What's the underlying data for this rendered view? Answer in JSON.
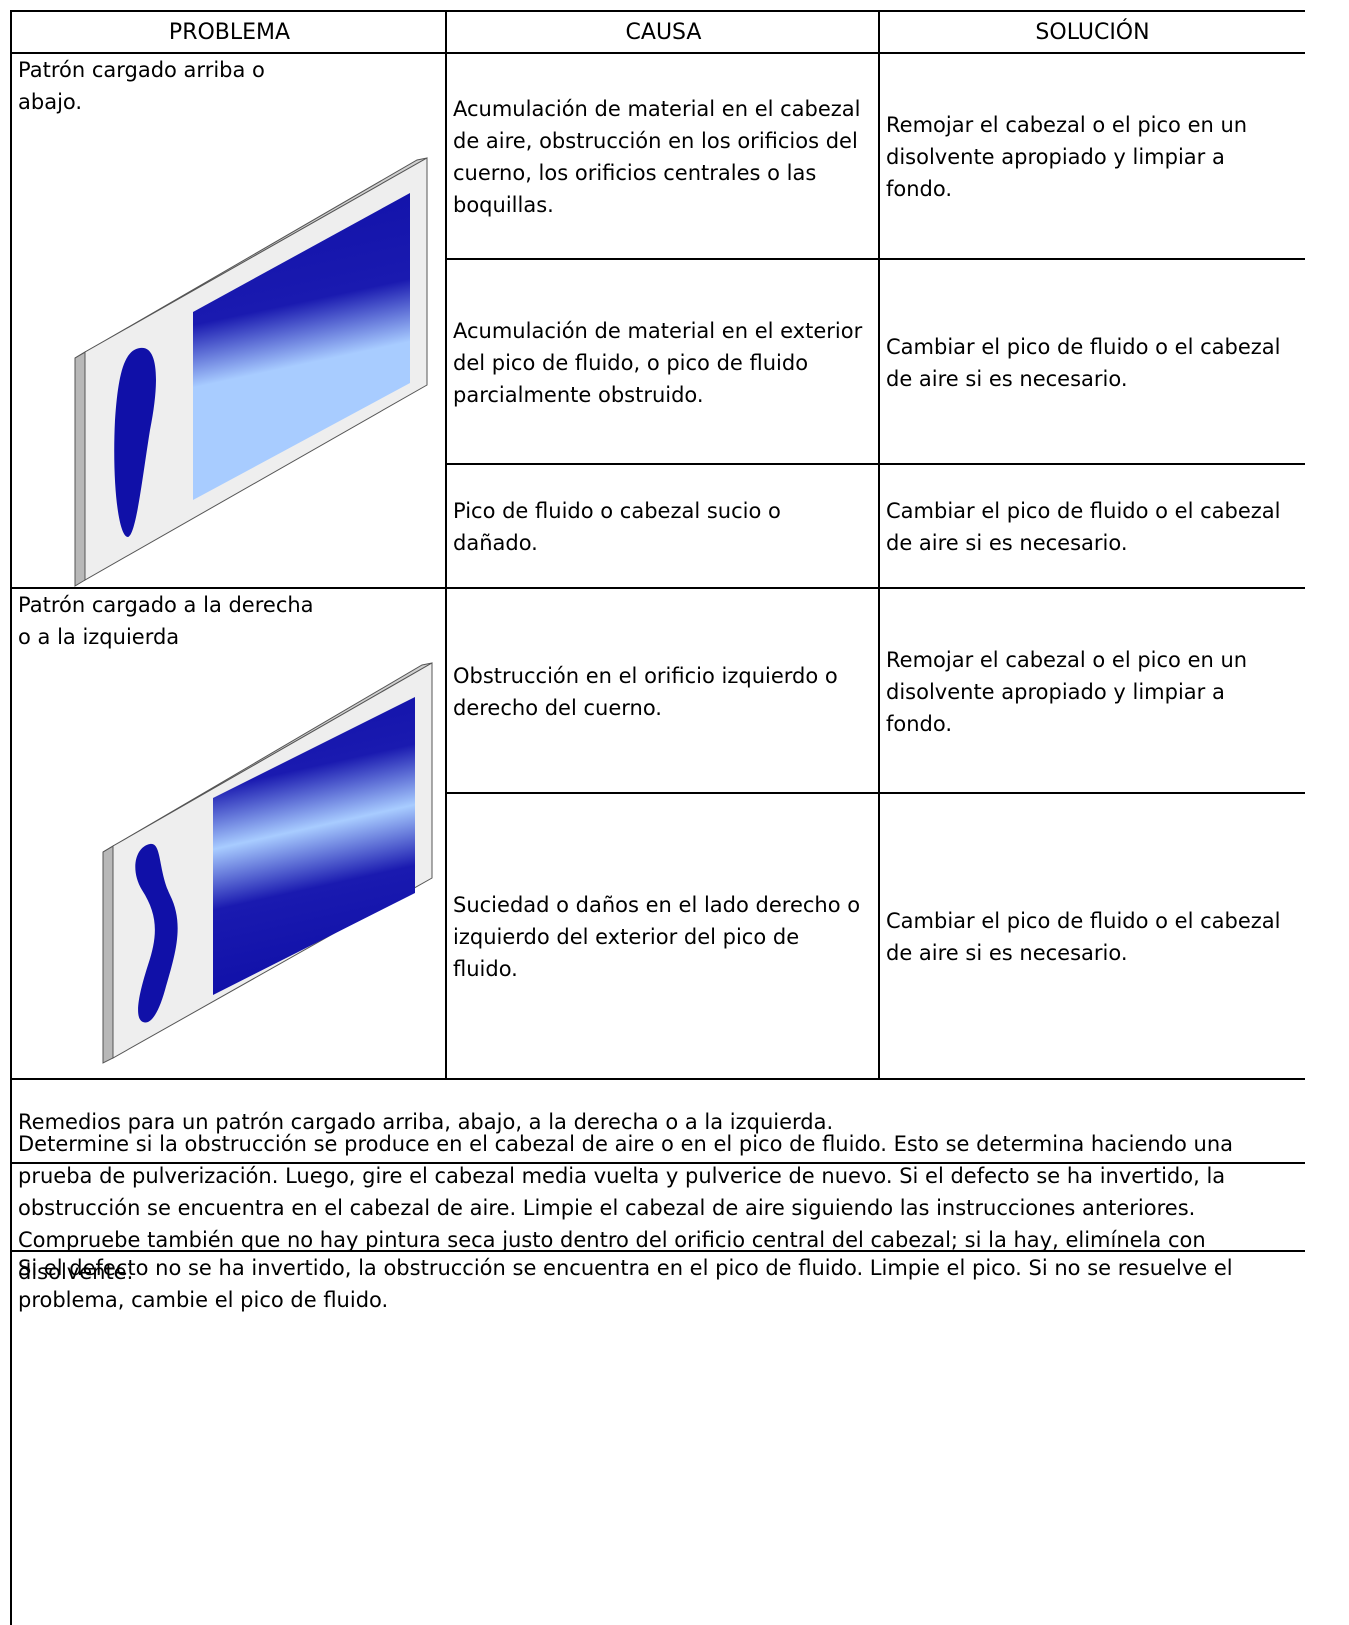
{
  "header": [
    "PROBLEMA",
    "CAUSA",
    "SOLUCIÓN"
  ],
  "groups": [
    {
      "problem": "Patrón cargado arriba o abajo.",
      "rows": [
        {
          "cause": "Acumulación de material en el cabezal de aire, obstrucción en los orificios del cuerno, los orificios centrales o las boquillas.",
          "solution": "Remojar el cabezal o el pico en un disolvente apropiado y limpiar a fondo."
        },
        {
          "cause": "Acumulación de material en el exterior del pico de fluido, o pico de fluido parcialmente obstruido.",
          "solution": "Cambiar el pico de fluido o el cabezal de aire si es necesario."
        },
        {
          "cause": "Pico de fluido o cabezal sucio o dañado.",
          "solution": "Cambiar el pico de fluido o el cabezal de aire si es necesario."
        }
      ]
    },
    {
      "problem": "Patrón cargado a la derecha o a la izquierda",
      "rows": [
        {
          "cause": "Obstrucción en el orificio izquierdo o derecho del cuerno.",
          "solution": "Remojar el cabezal o el pico en un disolvente apropiado y limpiar a fondo."
        },
        {
          "cause": "Suciedad o daños en el lado derecho o izquierdo del exterior del pico de fluido.",
          "solution": "Cambiar el pico de fluido o el cabezal de aire si es necesario."
        }
      ]
    }
  ],
  "notes": [
    "Remedios para un patrón cargado arriba, abajo, a la derecha o a la izquierda.",
    "Determine si la obstrucción se produce en el cabezal de aire o en el pico de fluido. Esto se determina haciendo una prueba de pulverización. Luego, gire el cabezal media vuelta y pulverice de nuevo. Si el defecto se ha invertido, la obstrucción se encuentra en el cabezal de aire. Limpie el cabezal de aire siguiendo las instrucciones anteriores. Compruebe también que no hay pintura seca justo dentro del orificio central del cabezal; si la hay, elimínela con disolvente.",
    "Si el defecto no se ha invertido, la obstrucción se encuentra en el pico de fluido. Limpie el pico. Si no se resuelve el problema, cambie el pico de fluido."
  ]
}
